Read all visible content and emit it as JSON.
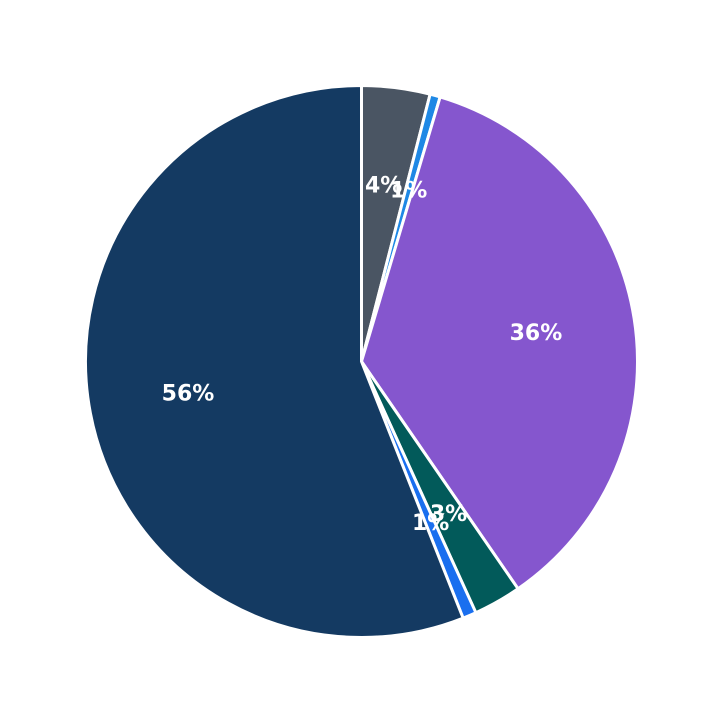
{
  "chart_data": {
    "type": "pie",
    "start_angle_deg": 90,
    "direction": "clockwise",
    "slices": [
      {
        "value": 4,
        "label": "4%",
        "color": "#4a5563"
      },
      {
        "value": 0.6,
        "label": "1%",
        "color": "#1e88e5"
      },
      {
        "value": 35.8,
        "label": "36%",
        "color": "#8556ce"
      },
      {
        "value": 2.8,
        "label": "3%",
        "color": "#025a5a"
      },
      {
        "value": 0.8,
        "label": "1%",
        "color": "#1a6fef"
      },
      {
        "value": 56,
        "label": "56%",
        "color": "#143a62"
      }
    ],
    "legend": "none"
  }
}
